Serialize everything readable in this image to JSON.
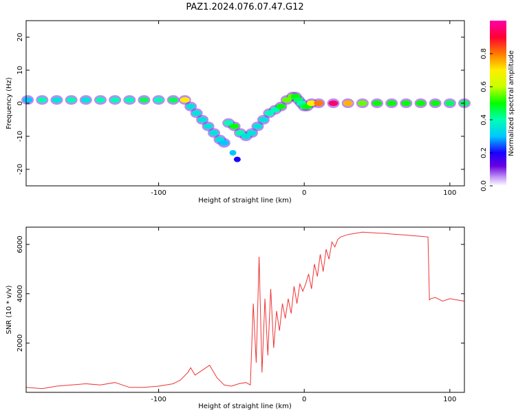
{
  "title": "PAZ1.2024.076.07.47.G12",
  "chart_data": [
    {
      "type": "heatmap",
      "title": "PAZ1.2024.076.07.47.G12",
      "xlabel": "Height of straight line (km)",
      "ylabel": "Frequency (Hz)",
      "xlim": [
        -191,
        110
      ],
      "ylim": [
        -25,
        25
      ],
      "x_ticks": [
        -100,
        0,
        100
      ],
      "x_tick_labels": [
        "-100",
        "0",
        "100"
      ],
      "y_ticks": [
        -20,
        -10,
        0,
        10,
        20
      ],
      "y_tick_labels": [
        "-20",
        "-10",
        "0",
        "10",
        "20"
      ],
      "colorbar": {
        "label": "Normalized spectral amplitude",
        "range": [
          0,
          1
        ],
        "ticks": [
          0.0,
          0.2,
          0.4,
          0.6,
          0.8
        ],
        "tick_labels": [
          "0.0",
          "0.2",
          "0.4",
          "0.6",
          "0.8"
        ]
      },
      "series": [
        {
          "x": [
            -190,
            -180,
            -170,
            -160,
            -150,
            -140,
            -130,
            -120,
            -110,
            -100,
            -90,
            -82,
            -78,
            -74,
            -70,
            -66,
            -62,
            -58,
            -55,
            -52,
            -48,
            -44,
            -40,
            -36,
            -32,
            -28,
            -24,
            -20,
            -16,
            -12,
            -8,
            -6,
            -4,
            -2,
            0,
            2,
            5,
            10,
            20,
            30,
            40,
            50,
            60,
            70,
            80,
            90,
            100,
            110
          ],
          "y": [
            1,
            1,
            1,
            1,
            1,
            1,
            1,
            1,
            1,
            1,
            1,
            1,
            -1,
            -3,
            -5,
            -7,
            -9,
            -11,
            -12,
            -6,
            -7,
            -9,
            -10,
            -9,
            -7,
            -5,
            -3,
            -2,
            -1,
            1,
            2,
            2,
            1,
            0,
            -1,
            -1,
            0,
            0,
            0,
            0,
            0,
            0,
            0,
            0,
            0,
            0,
            0,
            0
          ],
          "amp": [
            0.3,
            0.4,
            0.35,
            0.4,
            0.35,
            0.4,
            0.4,
            0.4,
            0.45,
            0.4,
            0.45,
            0.7,
            0.35,
            0.35,
            0.35,
            0.35,
            0.35,
            0.35,
            0.3,
            0.4,
            0.5,
            0.4,
            0.35,
            0.35,
            0.35,
            0.35,
            0.4,
            0.4,
            0.5,
            0.55,
            0.55,
            0.5,
            0.45,
            0.4,
            0.45,
            0.5,
            0.7,
            0.8,
            0.95,
            0.75,
            0.55,
            0.5,
            0.5,
            0.5,
            0.5,
            0.5,
            0.45,
            0.45
          ]
        }
      ],
      "extra_blobs": [
        {
          "x": -49,
          "y": -15,
          "amp": 0.3
        },
        {
          "x": -46,
          "y": -17,
          "amp": 0.2
        }
      ]
    },
    {
      "type": "line",
      "xlabel": "Height of straight line (km)",
      "ylabel": "SNR (10 * v/v)",
      "xlim": [
        -191,
        110
      ],
      "ylim": [
        0,
        6700
      ],
      "x_ticks": [
        -100,
        0,
        100
      ],
      "x_tick_labels": [
        "-100",
        "0",
        "100"
      ],
      "y_ticks": [
        2000,
        4000,
        6000
      ],
      "y_tick_labels": [
        "2000",
        "4000",
        "6000"
      ],
      "color": "#ee3333",
      "series": [
        {
          "x": [
            -191,
            -180,
            -170,
            -160,
            -150,
            -140,
            -130,
            -120,
            -110,
            -100,
            -95,
            -90,
            -85,
            -80,
            -78,
            -75,
            -70,
            -65,
            -60,
            -55,
            -50,
            -45,
            -40,
            -37,
            -35,
            -33,
            -31,
            -29,
            -27,
            -25,
            -23,
            -21,
            -19,
            -17,
            -15,
            -13,
            -11,
            -9,
            -7,
            -5,
            -3,
            -1,
            1,
            3,
            5,
            7,
            9,
            11,
            13,
            15,
            17,
            19,
            21,
            23,
            25,
            30,
            35,
            40,
            45,
            50,
            55,
            60,
            65,
            70,
            75,
            80,
            85,
            86,
            87,
            90,
            95,
            100,
            105,
            110
          ],
          "y": [
            200,
            150,
            250,
            300,
            350,
            300,
            400,
            200,
            200,
            250,
            300,
            350,
            500,
            800,
            1000,
            700,
            900,
            1100,
            600,
            300,
            250,
            350,
            400,
            300,
            3600,
            1200,
            5500,
            800,
            3800,
            1500,
            4200,
            1800,
            3300,
            2500,
            3600,
            3000,
            3800,
            3200,
            4300,
            3600,
            4400,
            4100,
            4400,
            4800,
            4200,
            5200,
            4700,
            5600,
            4900,
            5800,
            5400,
            6100,
            5900,
            6200,
            6300,
            6400,
            6450,
            6500,
            6480,
            6460,
            6450,
            6420,
            6400,
            6380,
            6350,
            6330,
            6300,
            3750,
            3800,
            3850,
            3700,
            3800,
            3750,
            3700
          ]
        }
      ]
    }
  ]
}
